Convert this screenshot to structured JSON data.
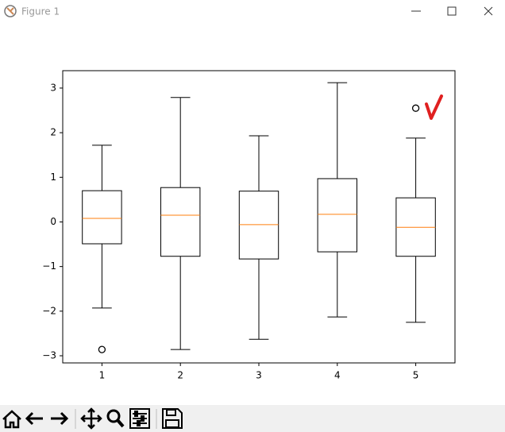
{
  "window": {
    "title": "Figure 1"
  },
  "chart_data": {
    "type": "box",
    "xlim": [
      0.5,
      5.5
    ],
    "xticks": [
      1,
      2,
      3,
      4,
      5
    ],
    "ylim": [
      -3.16,
      3.39
    ],
    "yticks": [
      {
        "value": -3,
        "label": "−3"
      },
      {
        "value": -2,
        "label": "−2"
      },
      {
        "value": -1,
        "label": "−1"
      },
      0,
      1,
      2,
      3
    ],
    "box_color": "#000000",
    "median_color": "#ff7f0e",
    "boxes": [
      {
        "whislo": -1.93,
        "q1": -0.49,
        "med": 0.08,
        "q3": 0.7,
        "whishi": 1.72,
        "fliers": [
          -2.86
        ]
      },
      {
        "whislo": -2.86,
        "q1": -0.77,
        "med": 0.15,
        "q3": 0.77,
        "whishi": 2.79,
        "fliers": []
      },
      {
        "whislo": -2.63,
        "q1": -0.83,
        "med": -0.06,
        "q3": 0.69,
        "whishi": 1.93,
        "fliers": []
      },
      {
        "whislo": -2.13,
        "q1": -0.67,
        "med": 0.17,
        "q3": 0.97,
        "whishi": 3.12,
        "fliers": []
      },
      {
        "whislo": -2.25,
        "q1": -0.77,
        "med": -0.12,
        "q3": 0.54,
        "whishi": 1.88,
        "fliers": [
          2.55
        ]
      }
    ]
  }
}
